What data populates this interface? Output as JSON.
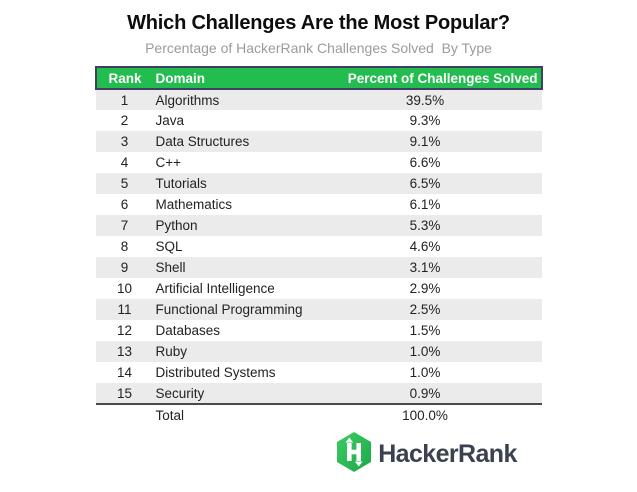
{
  "title": "Which Challenges Are the Most Popular?",
  "subtitle": "Percentage of HackerRank Challenges Solved  By Type",
  "table": {
    "headers": [
      "Rank",
      "Domain",
      "Percent of Challenges Solved"
    ],
    "rows": [
      {
        "rank": "1",
        "domain": "Algorithms",
        "percent": "39.5%"
      },
      {
        "rank": "2",
        "domain": "Java",
        "percent": "9.3%"
      },
      {
        "rank": "3",
        "domain": "Data Structures",
        "percent": "9.1%"
      },
      {
        "rank": "4",
        "domain": "C++",
        "percent": "6.6%"
      },
      {
        "rank": "5",
        "domain": "Tutorials",
        "percent": "6.5%"
      },
      {
        "rank": "6",
        "domain": "Mathematics",
        "percent": "6.1%"
      },
      {
        "rank": "7",
        "domain": "Python",
        "percent": "5.3%"
      },
      {
        "rank": "8",
        "domain": "SQL",
        "percent": "4.6%"
      },
      {
        "rank": "9",
        "domain": "Shell",
        "percent": "3.1%"
      },
      {
        "rank": "10",
        "domain": "Artificial Intelligence",
        "percent": "2.9%"
      },
      {
        "rank": "11",
        "domain": "Functional Programming",
        "percent": "2.5%"
      },
      {
        "rank": "12",
        "domain": "Databases",
        "percent": "1.5%"
      },
      {
        "rank": "13",
        "domain": "Ruby",
        "percent": "1.0%"
      },
      {
        "rank": "14",
        "domain": "Distributed Systems",
        "percent": "1.0%"
      },
      {
        "rank": "15",
        "domain": "Security",
        "percent": "0.9%"
      }
    ],
    "total_label": "Total",
    "total_value": "100.0%"
  },
  "logo": {
    "brand": "HackerRank",
    "icon": "hackerrank-hexagon-h-icon"
  },
  "colors": {
    "header_bg": "#22bd4e",
    "header_border": "#3f3f63",
    "header_text": "#ffffff",
    "stripe": "#ebebeb",
    "text": "#222222",
    "subtitle": "#9b9b9b",
    "total_border": "#4a4a4a",
    "logo_green": "#2bbe52",
    "logo_text": "#39424e"
  },
  "chart_data": {
    "type": "table",
    "title": "Which Challenges Are the Most Popular?",
    "subtitle": "Percentage of HackerRank Challenges Solved By Type",
    "columns": [
      "Rank",
      "Domain",
      "Percent of Challenges Solved"
    ],
    "categories": [
      "Algorithms",
      "Java",
      "Data Structures",
      "C++",
      "Tutorials",
      "Mathematics",
      "Python",
      "SQL",
      "Shell",
      "Artificial Intelligence",
      "Functional Programming",
      "Databases",
      "Ruby",
      "Distributed Systems",
      "Security"
    ],
    "values": [
      39.5,
      9.3,
      9.1,
      6.6,
      6.5,
      6.1,
      5.3,
      4.6,
      3.1,
      2.9,
      2.5,
      1.5,
      1.0,
      1.0,
      0.9
    ],
    "unit": "%",
    "total": 100.0,
    "source_brand": "HackerRank"
  }
}
